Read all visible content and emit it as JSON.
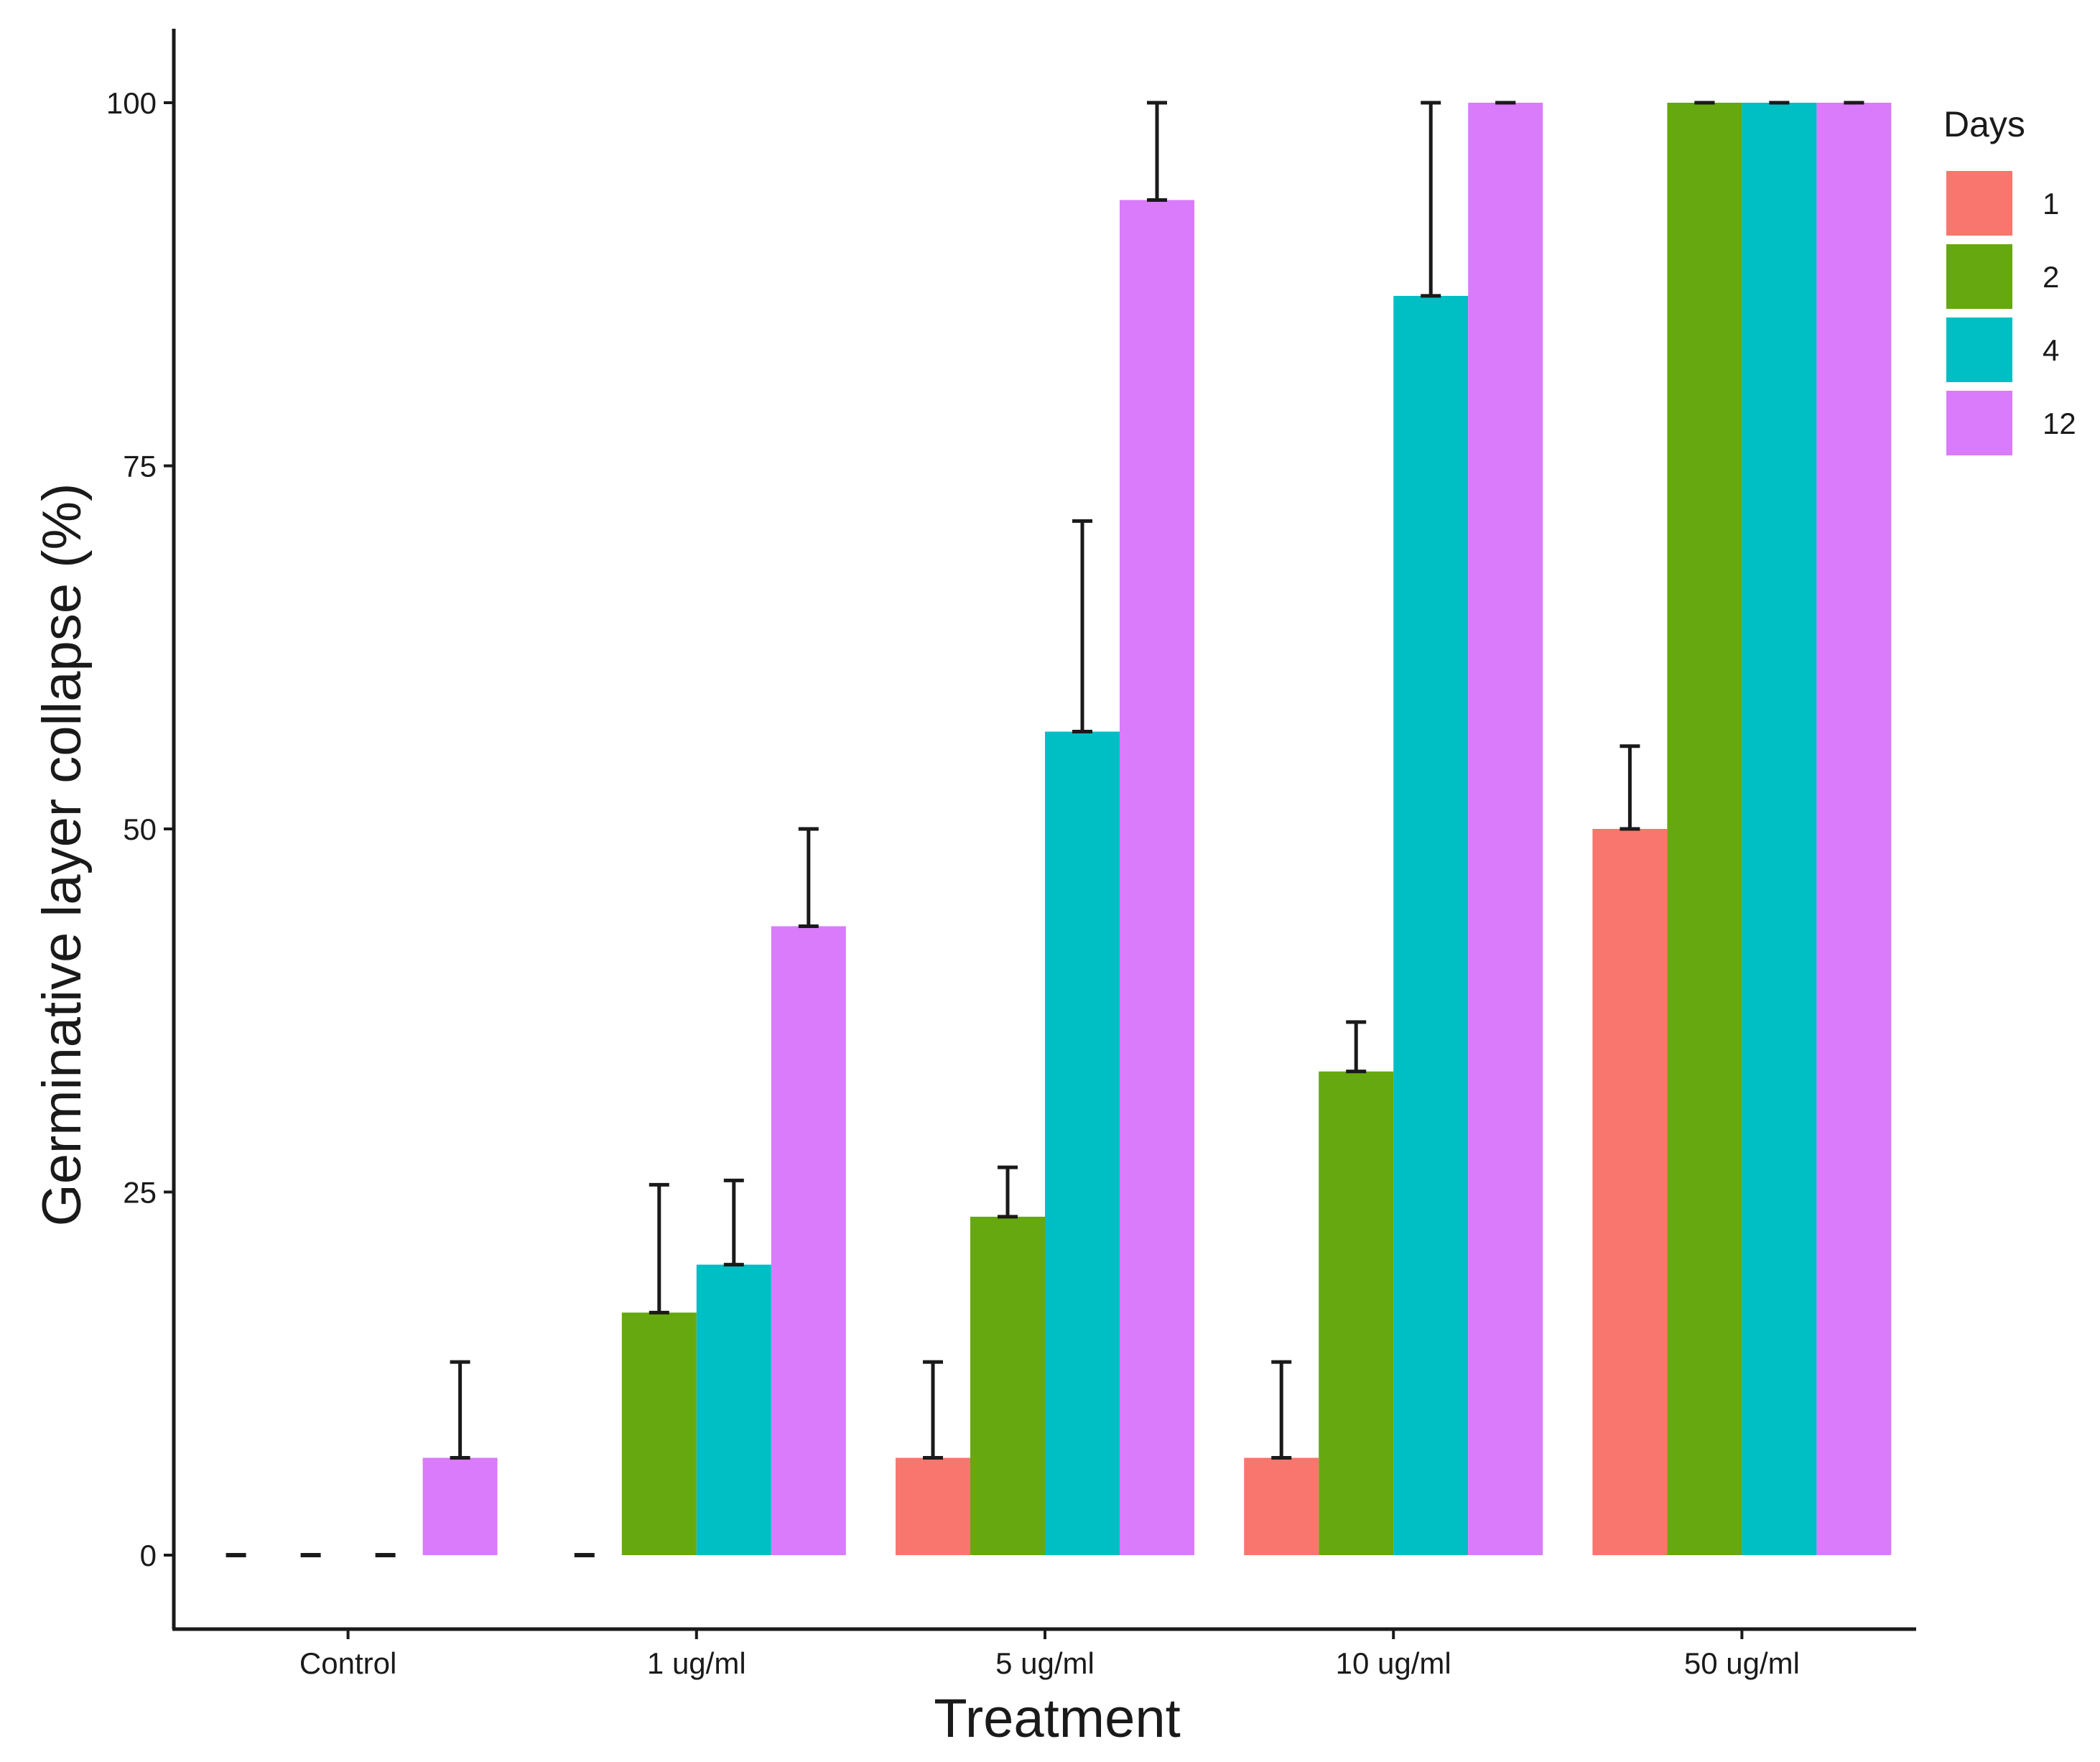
{
  "chart_data": {
    "type": "bar",
    "title": "",
    "xlabel": "Treatment",
    "ylabel": "Germinative layer collapse (%)",
    "ylim": [
      -10,
      105
    ],
    "yticks": [
      0,
      25,
      50,
      75,
      100
    ],
    "categories": [
      "Control",
      "1 ug/ml",
      "5 ug/ml",
      "10 ug/ml",
      "50 ug/ml"
    ],
    "legend": {
      "title": "Days",
      "position": "right"
    },
    "grid": false,
    "series": [
      {
        "name": "1",
        "color": "#F8766D",
        "values": [
          0,
          0,
          6.7,
          6.7,
          50
        ],
        "error_upper": [
          0,
          0,
          13.3,
          13.3,
          55.7
        ]
      },
      {
        "name": "2",
        "color": "#66A80F",
        "values": [
          0,
          16.7,
          23.3,
          33.3,
          100
        ],
        "error_upper": [
          0,
          25.5,
          26.7,
          36.7,
          100
        ]
      },
      {
        "name": "4",
        "color": "#00BFC4",
        "values": [
          0,
          20,
          56.7,
          86.7,
          100
        ],
        "error_upper": [
          0,
          25.8,
          71.2,
          100,
          100
        ]
      },
      {
        "name": "12",
        "color": "#D97BFA",
        "values": [
          6.7,
          43.3,
          93.3,
          100,
          100
        ],
        "error_upper": [
          13.3,
          50,
          100,
          100,
          100
        ]
      }
    ]
  }
}
